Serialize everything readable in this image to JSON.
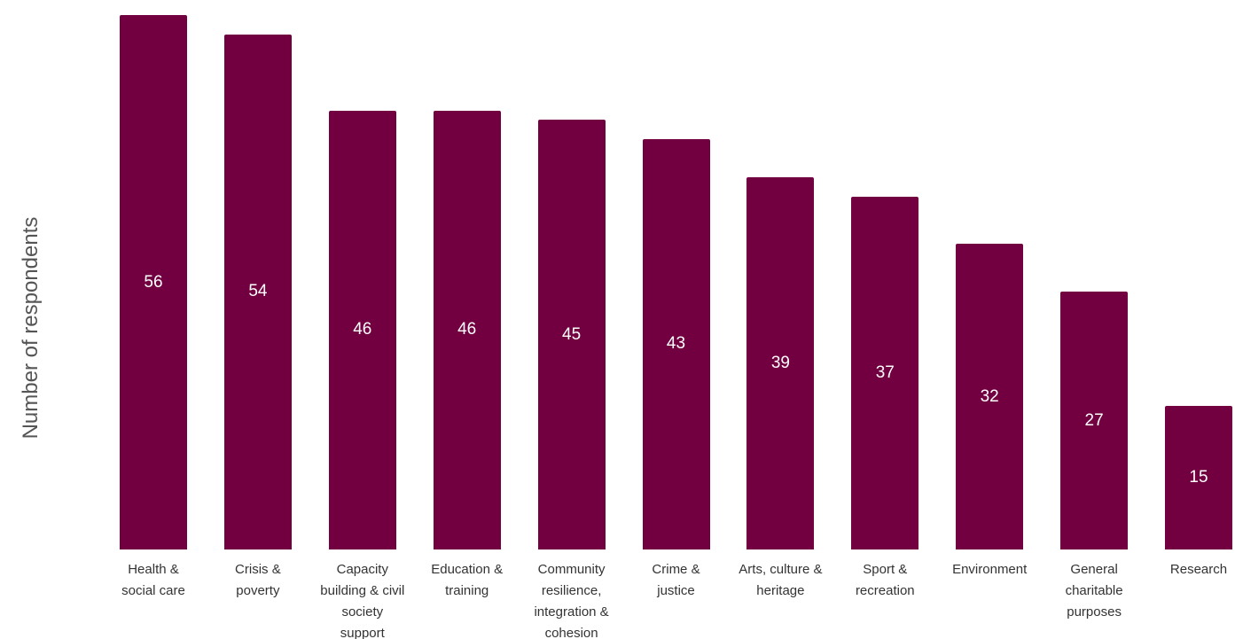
{
  "chart_data": {
    "type": "bar",
    "y_axis_label": "Number of respondents",
    "categories": [
      "Health & social care",
      "Crisis & poverty",
      "Capacity building & civil society support",
      "Education & training",
      "Community resilience, integration & cohesion",
      "Crime & justice",
      "Arts, culture & heritage",
      "Sport & recreation",
      "Environment",
      "General charitable purposes",
      "Research"
    ],
    "values": [
      56,
      54,
      46,
      46,
      45,
      43,
      39,
      37,
      32,
      27,
      15
    ],
    "color": "#720041"
  }
}
